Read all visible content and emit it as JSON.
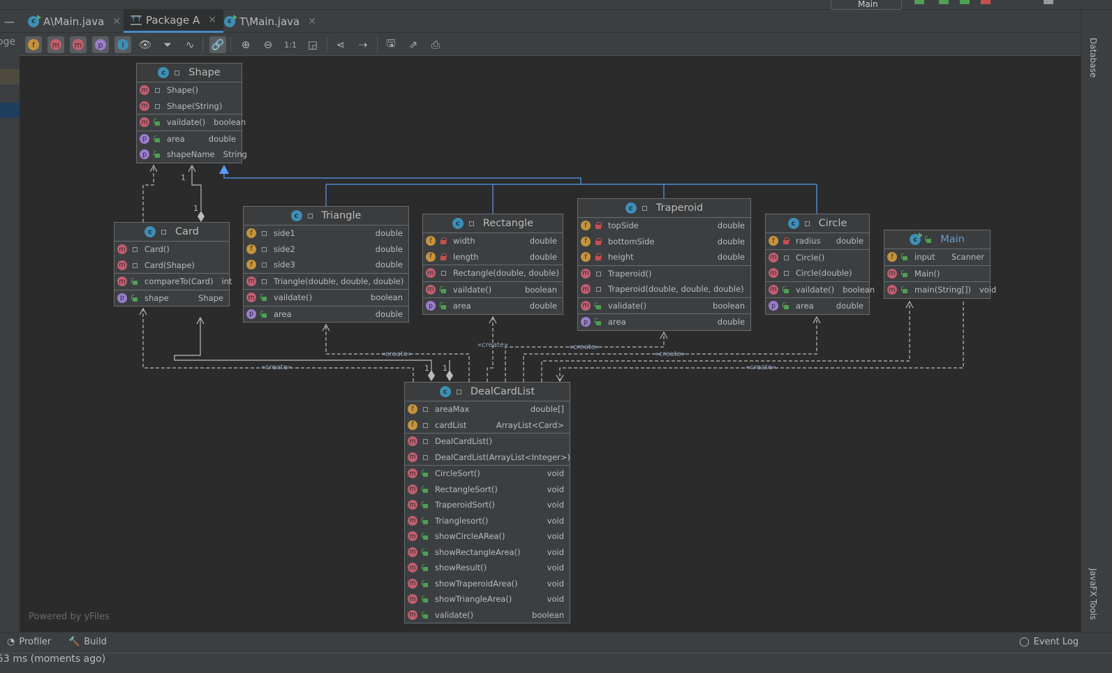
{
  "topbar": {
    "run_config": "Main"
  },
  "tabs": [
    {
      "label": "A\\Main.java",
      "icon": "java-class-run-icon",
      "active": false
    },
    {
      "label": "Package A",
      "icon": "uml-diagram-icon",
      "active": true
    },
    {
      "label": "T\\Main.java",
      "icon": "java-class-run-icon",
      "active": false
    }
  ],
  "left_panel": {
    "partial_text": "oge"
  },
  "toolbar": {
    "buttons": [
      {
        "name": "show-fields",
        "glyph": "f"
      },
      {
        "name": "show-constructors",
        "glyph": "m"
      },
      {
        "name": "show-methods",
        "glyph": "m"
      },
      {
        "name": "show-properties",
        "glyph": "p"
      },
      {
        "name": "show-inner-classes",
        "glyph": "I"
      },
      {
        "name": "visibility",
        "glyph": "👁"
      },
      {
        "name": "filter",
        "glyph": "⏷"
      },
      {
        "name": "edge-routing",
        "glyph": "∿"
      },
      {
        "name": "show-dependencies",
        "glyph": "🔗"
      },
      {
        "name": "zoom-in",
        "glyph": "⊕"
      },
      {
        "name": "zoom-out",
        "glyph": "⊖"
      },
      {
        "name": "actual-size",
        "glyph": "1:1"
      },
      {
        "name": "fit-content",
        "glyph": "◲"
      },
      {
        "name": "layout",
        "glyph": "⋖"
      },
      {
        "name": "apply-layout",
        "glyph": "⇢"
      },
      {
        "name": "save",
        "glyph": "🖫"
      },
      {
        "name": "export",
        "glyph": "⇗"
      },
      {
        "name": "print",
        "glyph": "⎙"
      }
    ]
  },
  "diagram": {
    "classes": [
      {
        "name": "Shape",
        "sections": [
          [
            {
              "k": "m",
              "v": "package",
              "n": "Shape()",
              "t": ""
            },
            {
              "k": "m",
              "v": "package",
              "n": "Shape(String)",
              "t": ""
            }
          ],
          [
            {
              "k": "m",
              "v": "public",
              "n": "vaildate()",
              "t": "boolean"
            }
          ],
          [
            {
              "k": "p",
              "v": "public",
              "n": "area",
              "t": "double"
            },
            {
              "k": "p",
              "v": "public",
              "n": "shapeName",
              "t": "String"
            }
          ]
        ]
      },
      {
        "name": "Card",
        "sections": [
          [
            {
              "k": "m",
              "v": "package",
              "n": "Card()",
              "t": ""
            },
            {
              "k": "m",
              "v": "package",
              "n": "Card(Shape)",
              "t": ""
            }
          ],
          [
            {
              "k": "m",
              "v": "public",
              "n": "compareTo(Card)",
              "t": "int"
            }
          ],
          [
            {
              "k": "p",
              "v": "public",
              "n": "shape",
              "t": "Shape"
            }
          ]
        ]
      },
      {
        "name": "Triangle",
        "sections": [
          [
            {
              "k": "f",
              "v": "package",
              "n": "side1",
              "t": "double"
            },
            {
              "k": "f",
              "v": "package",
              "n": "side2",
              "t": "double"
            },
            {
              "k": "f",
              "v": "package",
              "n": "side3",
              "t": "double"
            }
          ],
          [
            {
              "k": "m",
              "v": "package",
              "n": "Triangle(double, double, double)",
              "t": ""
            }
          ],
          [
            {
              "k": "m",
              "v": "public",
              "n": "vaildate()",
              "t": "boolean"
            }
          ],
          [
            {
              "k": "p",
              "v": "public",
              "n": "area",
              "t": "double"
            }
          ]
        ]
      },
      {
        "name": "Rectangle",
        "sections": [
          [
            {
              "k": "f",
              "v": "private",
              "n": "width",
              "t": "double"
            },
            {
              "k": "f",
              "v": "private",
              "n": "length",
              "t": "double"
            }
          ],
          [
            {
              "k": "m",
              "v": "package",
              "n": "Rectangle(double, double)",
              "t": ""
            }
          ],
          [
            {
              "k": "m",
              "v": "public",
              "n": "vaildate()",
              "t": "boolean"
            }
          ],
          [
            {
              "k": "p",
              "v": "public",
              "n": "area",
              "t": "double"
            }
          ]
        ]
      },
      {
        "name": "Traperoid",
        "sections": [
          [
            {
              "k": "f",
              "v": "private",
              "n": "topSide",
              "t": "double"
            },
            {
              "k": "f",
              "v": "private",
              "n": "bottomSide",
              "t": "double"
            },
            {
              "k": "f",
              "v": "private",
              "n": "height",
              "t": "double"
            }
          ],
          [
            {
              "k": "m",
              "v": "package",
              "n": "Traperoid()",
              "t": ""
            },
            {
              "k": "m",
              "v": "package",
              "n": "Traperoid(double, double, double)",
              "t": ""
            }
          ],
          [
            {
              "k": "m",
              "v": "public",
              "n": "validate()",
              "t": "boolean"
            }
          ],
          [
            {
              "k": "p",
              "v": "public",
              "n": "area",
              "t": "double"
            }
          ]
        ]
      },
      {
        "name": "Circle",
        "sections": [
          [
            {
              "k": "f",
              "v": "private",
              "n": "radius",
              "t": "double"
            }
          ],
          [
            {
              "k": "m",
              "v": "package",
              "n": "Circle()",
              "t": ""
            },
            {
              "k": "m",
              "v": "package",
              "n": "Circle(double)",
              "t": ""
            }
          ],
          [
            {
              "k": "m",
              "v": "public",
              "n": "vaildate()",
              "t": "boolean"
            }
          ],
          [
            {
              "k": "p",
              "v": "public",
              "n": "area",
              "t": "double"
            }
          ]
        ]
      },
      {
        "name": "Main",
        "runnable": true,
        "sections": [
          [
            {
              "k": "f",
              "v": "public",
              "n": "input",
              "t": "Scanner"
            }
          ],
          [
            {
              "k": "m",
              "v": "public",
              "n": "Main()",
              "t": ""
            }
          ],
          [
            {
              "k": "m",
              "v": "public",
              "n": "main(String[])",
              "t": "void"
            }
          ]
        ]
      },
      {
        "name": "DealCardList",
        "sections": [
          [
            {
              "k": "f",
              "v": "package",
              "n": "areaMax",
              "t": "double[]"
            },
            {
              "k": "f",
              "v": "package",
              "n": "cardList",
              "t": "ArrayList<Card>"
            }
          ],
          [
            {
              "k": "m",
              "v": "package",
              "n": "DealCardList()",
              "t": ""
            },
            {
              "k": "m",
              "v": "package",
              "n": "DealCardList(ArrayList<Integer>)",
              "t": ""
            }
          ],
          [
            {
              "k": "m",
              "v": "public",
              "n": "CircleSort()",
              "t": "void"
            },
            {
              "k": "m",
              "v": "public",
              "n": "RectangleSort()",
              "t": "void"
            },
            {
              "k": "m",
              "v": "public",
              "n": "TraperoidSort()",
              "t": "void"
            },
            {
              "k": "m",
              "v": "public",
              "n": "Trianglesort()",
              "t": "void"
            },
            {
              "k": "m",
              "v": "public",
              "n": "showCircleARea()",
              "t": "void"
            },
            {
              "k": "m",
              "v": "public",
              "n": "showRectangleArea()",
              "t": "void"
            },
            {
              "k": "m",
              "v": "public",
              "n": "showResult()",
              "t": "void"
            },
            {
              "k": "m",
              "v": "public",
              "n": "showTraperoidArea()",
              "t": "void"
            },
            {
              "k": "m",
              "v": "public",
              "n": "showTriangleArea()",
              "t": "void"
            },
            {
              "k": "m",
              "v": "public",
              "n": "validate()",
              "t": "boolean"
            }
          ]
        ]
      }
    ],
    "create_label": "«create»",
    "multiplicity": "1",
    "powered_by": "Powered by yFiles"
  },
  "colors": {
    "inheritance": "#589df6",
    "class_icon": "#3d8fb5",
    "main_title": "#6e9ccf"
  },
  "right_panel": {
    "database": "Database",
    "javafx": "JavaFX Tools"
  },
  "bottom": {
    "profiler": "Profiler",
    "build": "Build",
    "event_log": "Event Log",
    "status": "53 ms (moments ago)"
  }
}
